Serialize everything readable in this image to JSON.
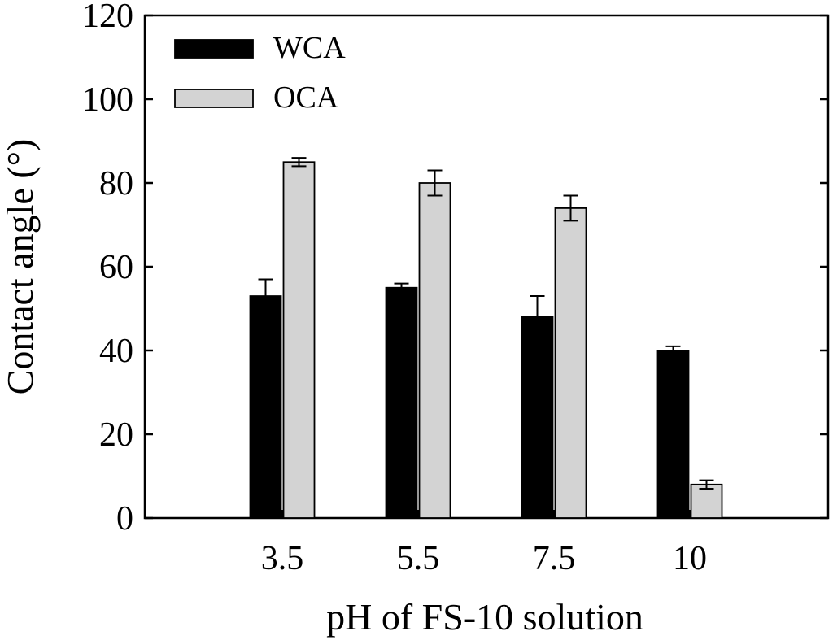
{
  "chart_data": {
    "type": "bar",
    "title": "",
    "xlabel": "pH of FS-10 solution",
    "ylabel": "Contact angle (°)",
    "categories": [
      "3.5",
      "5.5",
      "7.5",
      "10"
    ],
    "ylim": [
      0,
      120
    ],
    "yticks": [
      "0",
      "20",
      "40",
      "60",
      "80",
      "100",
      "120"
    ],
    "grid": false,
    "legend_position": "top-left",
    "series": [
      {
        "name": "WCA",
        "color": "#000000",
        "values": [
          53,
          55,
          48,
          40
        ],
        "errors": [
          4,
          1,
          5,
          1
        ]
      },
      {
        "name": "OCA",
        "color": "#d3d3d3",
        "values": [
          85,
          80,
          74,
          8
        ],
        "errors": [
          1,
          3,
          3,
          1
        ]
      }
    ]
  }
}
